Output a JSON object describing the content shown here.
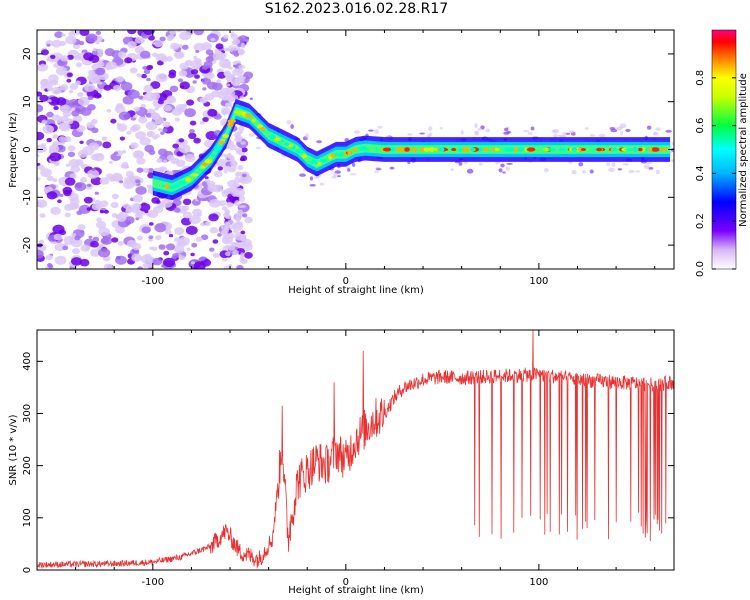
{
  "title": "S162.2023.016.02.28.R17",
  "chart_data": [
    {
      "type": "heatmap",
      "name": "spectrogram",
      "xlabel": "Height of straight line (km)",
      "ylabel": "Frequency (Hz)",
      "xlim": [
        -160,
        170
      ],
      "ylim": [
        -25,
        25
      ],
      "x_ticks": [
        -100,
        0,
        100
      ],
      "y_ticks": [
        -20,
        -10,
        0,
        10,
        20
      ],
      "colorbar": {
        "label": "Normalized spectral amplitude",
        "ticks": [
          0.0,
          0.2,
          0.4,
          0.6,
          0.8
        ],
        "range": [
          0,
          1
        ],
        "colormap": "rainbow (white/violet low, red/magenta high)"
      },
      "ridge": {
        "x": [
          -100,
          -90,
          -80,
          -70,
          -62,
          -57,
          -50,
          -45,
          -40,
          -35,
          -30,
          -25,
          -20,
          -15,
          -10,
          -5,
          0,
          5,
          10,
          20,
          50,
          100,
          150,
          168
        ],
        "y": [
          -7,
          -8,
          -6,
          -2,
          3,
          8,
          7,
          5,
          3,
          2,
          1,
          0,
          -2,
          -3,
          -2,
          -1,
          -1,
          0,
          0.3,
          0,
          0,
          0,
          0,
          0
        ]
      }
    },
    {
      "type": "line",
      "name": "snr",
      "xlabel": "Height of straight line (km)",
      "ylabel": "SNR (10 * v/v)",
      "xlim": [
        -160,
        170
      ],
      "ylim": [
        0,
        460
      ],
      "x_ticks": [
        -100,
        0,
        100
      ],
      "y_ticks": [
        0,
        100,
        200,
        300,
        400
      ],
      "color": "#e83232",
      "trend": {
        "x": [
          -160,
          -120,
          -100,
          -85,
          -70,
          -62,
          -55,
          -45,
          -38,
          -33,
          -30,
          -25,
          -20,
          -15,
          -10,
          -5,
          0,
          5,
          10,
          15,
          20,
          25,
          30,
          40,
          50,
          60,
          70,
          80,
          100,
          120,
          140,
          160,
          170
        ],
        "y": [
          10,
          12,
          15,
          25,
          45,
          75,
          35,
          20,
          60,
          240,
          60,
          170,
          190,
          210,
          200,
          230,
          210,
          250,
          270,
          290,
          300,
          330,
          350,
          365,
          370,
          368,
          370,
          372,
          375,
          365,
          360,
          355,
          360
        ]
      },
      "peaks": [
        {
          "x": -33,
          "y": 315
        },
        {
          "x": -6,
          "y": 360
        },
        {
          "x": 9,
          "y": 420
        },
        {
          "x": 97,
          "y": 460
        }
      ],
      "dropouts": {
        "x_start": 66,
        "x_end": 166,
        "depth_min": 55,
        "depth_max": 110
      }
    }
  ]
}
